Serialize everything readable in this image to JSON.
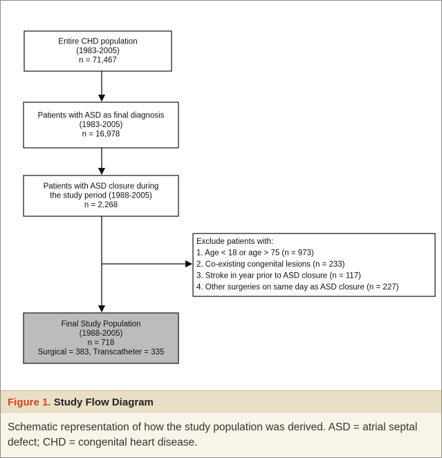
{
  "nodes": [
    {
      "lines": [
        "Entire CHD population",
        "(1983-2005)",
        "n = 71,467"
      ]
    },
    {
      "lines": [
        "Patients with ASD as final diagnosis",
        "(1983-2005)",
        "n = 16,978"
      ]
    },
    {
      "lines": [
        "Patients with ASD closure during",
        "the study period (1988-2005)",
        "n = 2,268"
      ]
    },
    {
      "lines": [
        "Final Study Population",
        "(1988-2005)",
        "n = 718",
        "Surgical = 383, Transcatheter = 335"
      ]
    }
  ],
  "exclusion": {
    "lines": [
      "Exclude patients with:",
      "1. Age < 18 or age > 75 (n = 973)",
      "2. Co-existing congenital lesions (n = 233)",
      "3. Stroke in year prior to ASD closure (n = 117)",
      "4. Other surgeries on same day as ASD closure (n = 227)"
    ]
  },
  "caption": {
    "label": "Figure 1.",
    "title": "Study Flow Diagram",
    "text": "Schematic representation of how the study population was derived. ASD = atrial septal defect; CHD = congenital heart disease."
  }
}
